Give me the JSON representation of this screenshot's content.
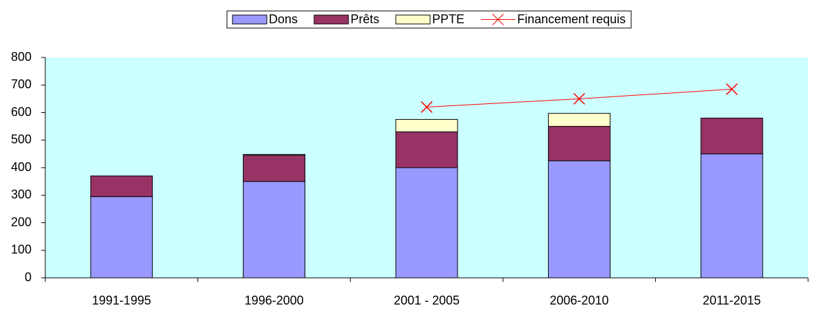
{
  "chart_data": {
    "type": "stacked-bar-line",
    "categories": [
      "1991-1995",
      "1996-2000",
      "2001 - 2005",
      "2006-2010",
      "2011-2015"
    ],
    "series": [
      {
        "name": "Dons",
        "color": "#9999ff",
        "kind": "bar",
        "values": [
          295,
          350,
          400,
          425,
          450
        ]
      },
      {
        "name": "Prêts",
        "color": "#993366",
        "kind": "bar",
        "values": [
          75,
          95,
          130,
          125,
          130
        ]
      },
      {
        "name": "PPTE",
        "color": "#ffffcc",
        "kind": "bar",
        "values": [
          0,
          3,
          45,
          47,
          0
        ]
      },
      {
        "name": "Financement requis",
        "color": "#ff0000",
        "kind": "line",
        "values": [
          null,
          null,
          620,
          650,
          685
        ]
      }
    ],
    "ylim": [
      0,
      800
    ],
    "yticks": [
      0,
      100,
      200,
      300,
      400,
      500,
      600,
      700,
      800
    ],
    "plot_background": "#ccffff",
    "legend": "top"
  }
}
